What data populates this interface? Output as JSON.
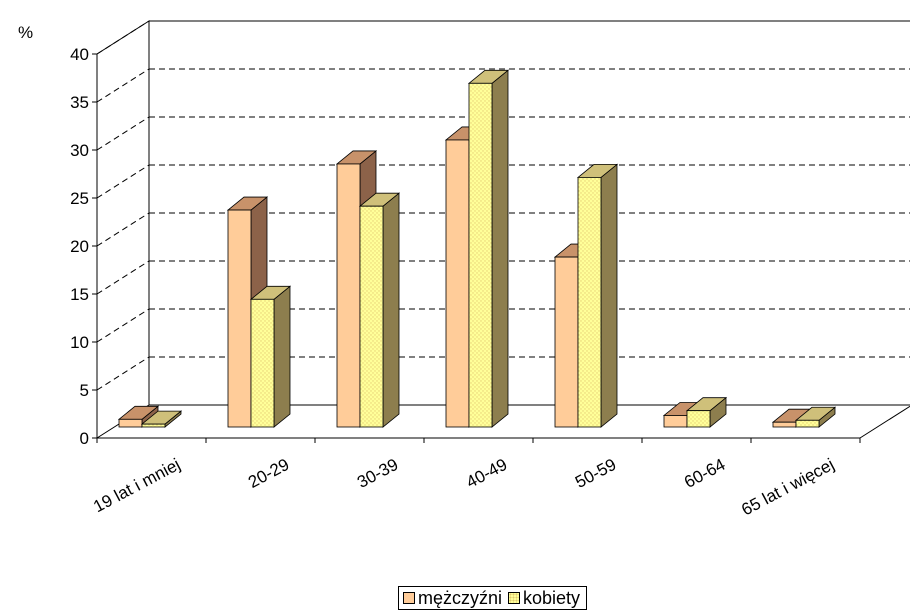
{
  "chart_data": {
    "type": "bar",
    "style": "3d-clustered",
    "unit_label": "%",
    "ylim": [
      0,
      40
    ],
    "yticks": [
      0,
      5,
      10,
      15,
      20,
      25,
      30,
      35,
      40
    ],
    "grid": true,
    "categories": [
      "19 lat i mniej",
      "20-29",
      "30-39",
      "40-49",
      "50-59",
      "60-64",
      "65 lat i więcej"
    ],
    "series": [
      {
        "name": "mężczyźni",
        "color": "#ffcc99",
        "values": [
          0.8,
          22.6,
          27.4,
          29.9,
          17.7,
          1.2,
          0.5
        ]
      },
      {
        "name": "kobiety",
        "color": "#ffff99",
        "values": [
          0.3,
          13.3,
          23.0,
          35.8,
          26.0,
          1.7,
          0.7
        ]
      }
    ],
    "legend_position": "bottom"
  }
}
